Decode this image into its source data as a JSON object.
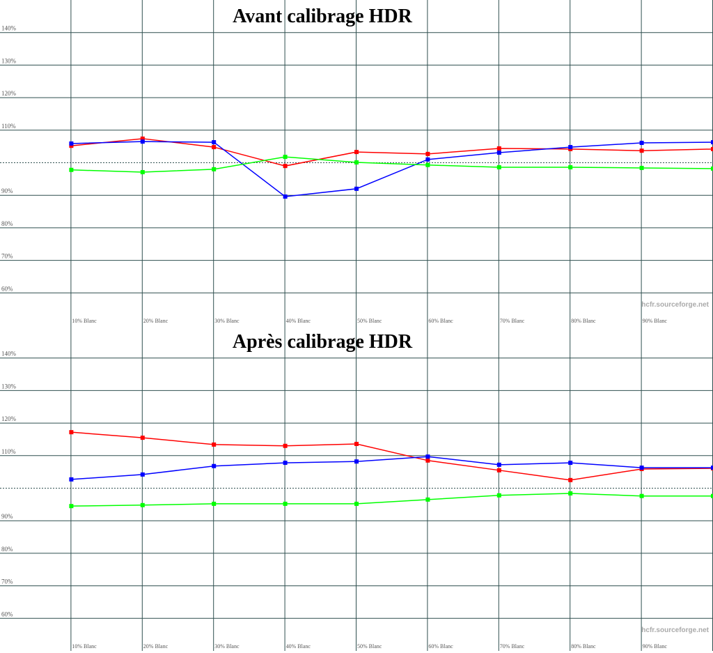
{
  "chart_data": [
    {
      "type": "line",
      "title": "Avant calibrage HDR",
      "watermark": "hcfr.sourceforge.net",
      "categories": [
        "10% Blanc",
        "20% Blanc",
        "30% Blanc",
        "40% Blanc",
        "50% Blanc",
        "60% Blanc",
        "70% Blanc",
        "80% Blanc",
        "90% Blanc",
        null
      ],
      "series": [
        {
          "color": "#ff0000",
          "values": [
            105.2,
            107.4,
            104.8,
            99.0,
            103.3,
            102.7,
            104.4,
            104.2,
            103.7,
            104.2
          ]
        },
        {
          "color": "#0000ff",
          "values": [
            105.9,
            106.5,
            106.3,
            89.6,
            92.0,
            101.0,
            103.1,
            104.8,
            106.1,
            106.3
          ]
        },
        {
          "color": "#00ff00",
          "values": [
            97.8,
            97.1,
            98.0,
            101.8,
            100.1,
            99.3,
            98.6,
            98.6,
            98.4,
            98.2
          ]
        }
      ],
      "ylim": [
        50,
        150
      ],
      "yticks": [
        {
          "value": 60,
          "label": "60%"
        },
        {
          "value": 70,
          "label": "70%"
        },
        {
          "value": 80,
          "label": "80%"
        },
        {
          "value": 90,
          "label": "90%"
        },
        {
          "value": 110,
          "label": "110%"
        },
        {
          "value": 120,
          "label": "120%"
        },
        {
          "value": 130,
          "label": "130%"
        },
        {
          "value": 140,
          "label": "140%"
        }
      ],
      "reference": 100,
      "grid": true
    },
    {
      "type": "line",
      "title": "Après calibrage HDR",
      "watermark": "hcfr.sourceforge.net",
      "categories": [
        "10% Blanc",
        "20% Blanc",
        "30% Blanc",
        "40% Blanc",
        "50% Blanc",
        "60% Blanc",
        "70% Blanc",
        "80% Blanc",
        "90% Blanc",
        null
      ],
      "series": [
        {
          "color": "#ff0000",
          "values": [
            117.2,
            115.5,
            113.4,
            113.0,
            113.6,
            108.5,
            105.5,
            102.5,
            105.9,
            106.1
          ]
        },
        {
          "color": "#0000ff",
          "values": [
            102.7,
            104.2,
            106.8,
            107.8,
            108.2,
            109.7,
            107.2,
            107.8,
            106.3,
            106.3
          ]
        },
        {
          "color": "#00ff00",
          "values": [
            94.5,
            94.8,
            95.2,
            95.2,
            95.2,
            96.5,
            97.8,
            98.4,
            97.6,
            97.6
          ]
        }
      ],
      "ylim": [
        50,
        150
      ],
      "yticks": [
        {
          "value": 60,
          "label": "60%"
        },
        {
          "value": 70,
          "label": "70%"
        },
        {
          "value": 80,
          "label": "80%"
        },
        {
          "value": 90,
          "label": "90%"
        },
        {
          "value": 110,
          "label": "110%"
        },
        {
          "value": 120,
          "label": "120%"
        },
        {
          "value": 130,
          "label": "130%"
        },
        {
          "value": 140,
          "label": "140%"
        }
      ],
      "reference": 100,
      "grid": true
    }
  ]
}
